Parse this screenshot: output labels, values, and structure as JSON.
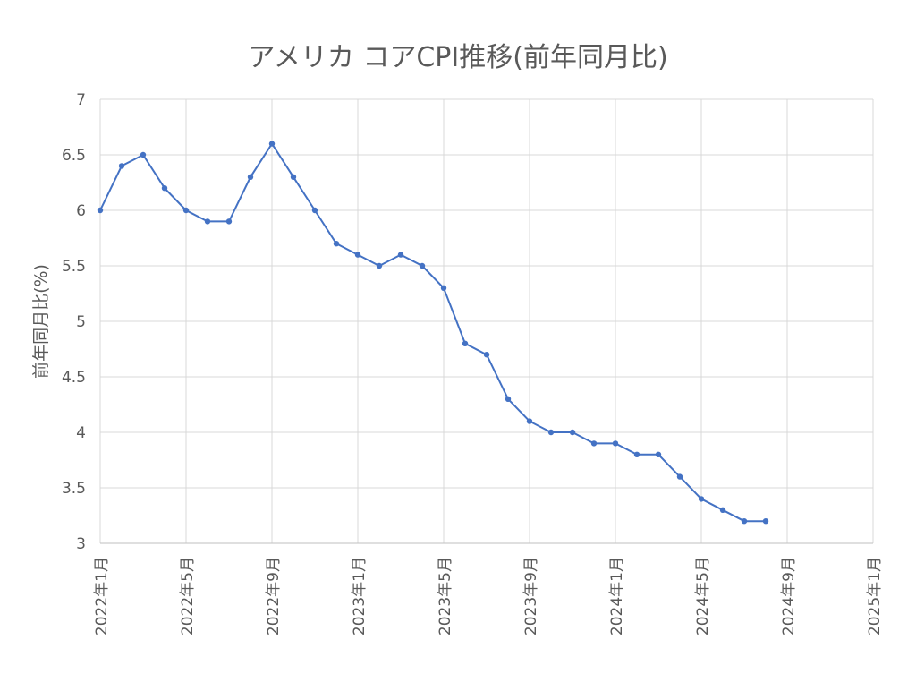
{
  "chart_data": {
    "type": "line",
    "title": "アメリカ コアCPI推移(前年同月比)",
    "xlabel": "",
    "ylabel": "前年同月比(%)",
    "ylim": [
      3,
      7
    ],
    "yticks": [
      "3",
      "3.5",
      "4",
      "4.5",
      "5",
      "5.5",
      "6",
      "6.5",
      "7"
    ],
    "xlim": [
      "2022-01",
      "2025-01"
    ],
    "xticks": [
      "2022年1月",
      "2022年5月",
      "2022年9月",
      "2023年1月",
      "2023年5月",
      "2023年9月",
      "2024年1月",
      "2024年5月",
      "2024年9月",
      "2025年1月"
    ],
    "grid": true,
    "line_color": "#4472C4",
    "series": [
      {
        "x": [
          "2022-01",
          "2022-02",
          "2022-03",
          "2022-04",
          "2022-05",
          "2022-06",
          "2022-07",
          "2022-08",
          "2022-09",
          "2022-10",
          "2022-11",
          "2022-12",
          "2023-01",
          "2023-02",
          "2023-03",
          "2023-04",
          "2023-05",
          "2023-06",
          "2023-07",
          "2023-08",
          "2023-09",
          "2023-10",
          "2023-11",
          "2023-12",
          "2024-01",
          "2024-02",
          "2024-03",
          "2024-04",
          "2024-05",
          "2024-06",
          "2024-07",
          "2024-08"
        ],
        "values": [
          6.0,
          6.4,
          6.5,
          6.2,
          6.0,
          5.9,
          5.9,
          6.3,
          6.6,
          6.3,
          6.0,
          5.7,
          5.6,
          5.5,
          5.6,
          5.5,
          5.3,
          4.8,
          4.7,
          4.3,
          4.1,
          4.0,
          4.0,
          3.9,
          3.9,
          3.8,
          3.8,
          3.6,
          3.4,
          3.3,
          3.2,
          3.2
        ]
      }
    ]
  }
}
